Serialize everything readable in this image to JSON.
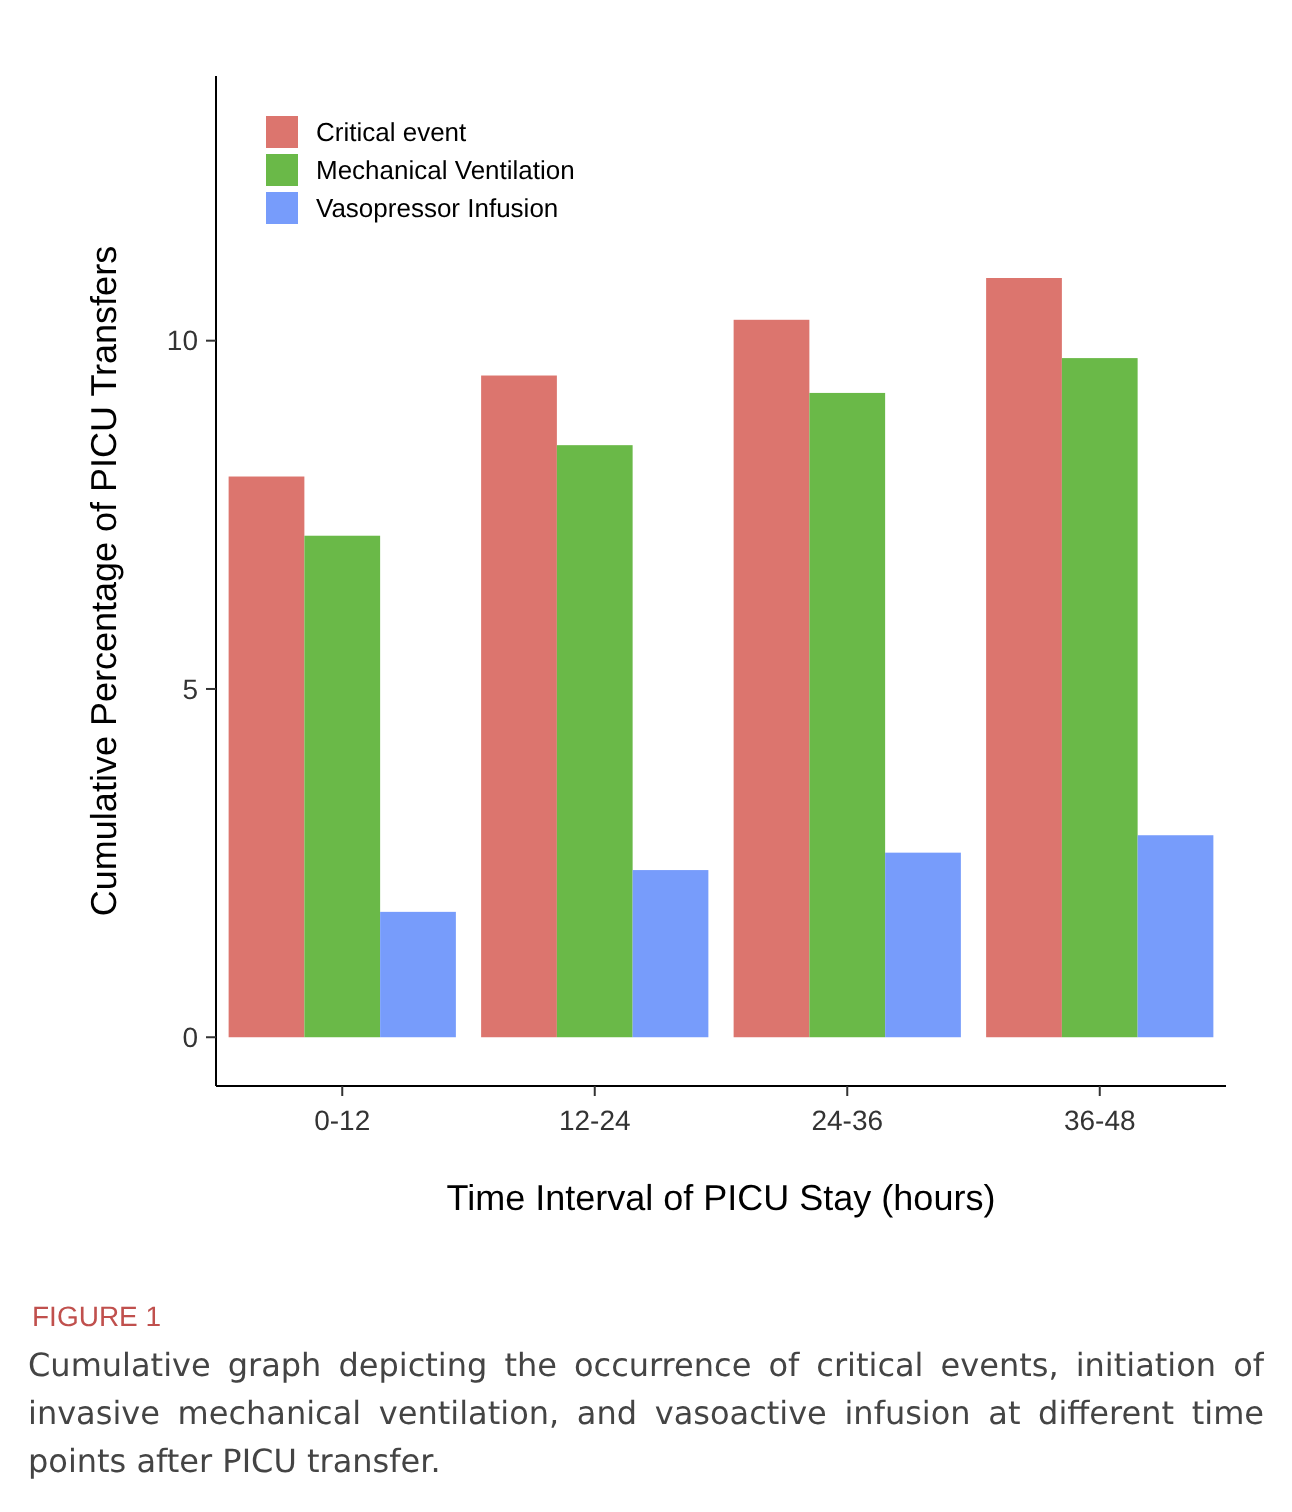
{
  "chart_data": {
    "type": "bar",
    "xlabel": "Time Interval of PICU Stay (hours)",
    "ylabel": "Cumulative Percentage of PICU Transfers",
    "categories": [
      "0-12",
      "12-24",
      "24-36",
      "36-48"
    ],
    "series": [
      {
        "name": "Critical event",
        "color": "#dc756e",
        "values": [
          8.05,
          9.5,
          10.3,
          10.9
        ]
      },
      {
        "name": "Mechanical Ventilation",
        "color": "#6ab948",
        "values": [
          7.2,
          8.5,
          9.25,
          9.75
        ]
      },
      {
        "name": "Vasopressor Infusion",
        "color": "#779cfb",
        "values": [
          1.8,
          2.4,
          2.65,
          2.9
        ]
      }
    ],
    "ylim": [
      -0.7,
      13.8
    ],
    "yticks": [
      0,
      5,
      10
    ],
    "grid": false,
    "legend": "top left",
    "annotations": [
      "FIGURE 1",
      "Cumulative graph depicting the occurrence of critical events, initiation of invasive mechanical ventilation, and vasoactive infusion at different time points after PICU transfer."
    ]
  }
}
